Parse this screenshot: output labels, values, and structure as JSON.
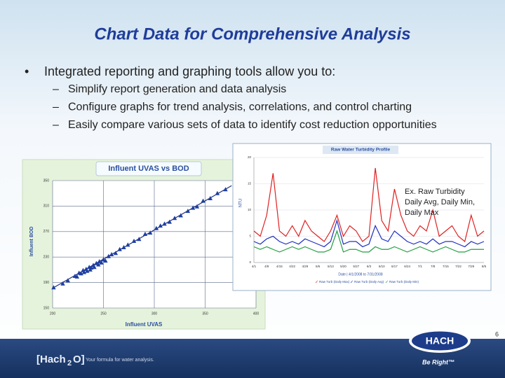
{
  "title": "Chart Data for Comprehensive Analysis",
  "bullets": [
    {
      "text": "Integrated reporting and graphing tools allow you to:",
      "sub": [
        "Simplify report generation and data analysis",
        "Configure graphs for trend analysis, correlations, and control charting",
        "Easily compare various sets of data to identify cost reduction opportunities"
      ]
    }
  ],
  "chart_data": [
    {
      "type": "scatter",
      "title": "Influent UVAS vs BOD",
      "x_label": "Influent UVAS",
      "y_label": "Influent BOD",
      "color": "#1f3fa0",
      "x": [
        201,
        210,
        215,
        222,
        224,
        226,
        228,
        230,
        231,
        233,
        234,
        236,
        237,
        238,
        240,
        241,
        243,
        245,
        246,
        248,
        250,
        252,
        255,
        258,
        262,
        266,
        270,
        274,
        280,
        285,
        291,
        296,
        302,
        306,
        310,
        315,
        320,
        326,
        333,
        338,
        342,
        348,
        355,
        362,
        370
      ],
      "values": [
        182,
        188,
        193,
        200,
        199,
        205,
        204,
        209,
        206,
        211,
        208,
        214,
        210,
        213,
        217,
        214,
        220,
        218,
        223,
        221,
        226,
        224,
        231,
        234,
        236,
        242,
        245,
        249,
        255,
        258,
        266,
        268,
        275,
        279,
        282,
        285,
        291,
        295,
        302,
        307,
        309,
        318,
        322,
        330,
        336
      ],
      "trendline": {
        "x": [
          200,
          376
        ],
        "values": [
          181,
          342
        ]
      },
      "xlim": [
        200,
        400
      ],
      "xticks": [
        200,
        250,
        300,
        350,
        400
      ],
      "ylim": [
        150,
        350
      ],
      "yticks": [
        150,
        190,
        230,
        270,
        310,
        350
      ],
      "grid": true
    },
    {
      "type": "line",
      "title": "Raw Water Turbidity Profile",
      "y_label": "NTU",
      "date_range": "Date | 4/1/2008 to 7/31/2008",
      "categories": [
        "4/1",
        null,
        "4/8",
        null,
        "4/15",
        null,
        "4/22",
        null,
        "4/29",
        null,
        "5/6",
        null,
        "5/13",
        null,
        "5/20",
        null,
        "5/27",
        null,
        "6/3",
        null,
        "6/10",
        null,
        "6/17",
        null,
        "6/24",
        null,
        "7/1",
        null,
        "7/8",
        null,
        "7/15",
        null,
        "7/22",
        null,
        "7/29",
        null,
        "8/5"
      ],
      "series": [
        {
          "name": "Raw Turb (Daily Max)",
          "color": "#e02020",
          "values": [
            6,
            5,
            9,
            17,
            6,
            5,
            7,
            5,
            8,
            6,
            5,
            4,
            6,
            9,
            5,
            7,
            6,
            4,
            5,
            18,
            8,
            6,
            14,
            9,
            6,
            5,
            7,
            6,
            10,
            5,
            6,
            7,
            5,
            4,
            9,
            5,
            6
          ]
        },
        {
          "name": "Raw Turb (Daily Avg)",
          "color": "#2030c0",
          "values": [
            4,
            3.5,
            4.5,
            5,
            4,
            3.5,
            4,
            3.5,
            4.5,
            4,
            3.5,
            3,
            4,
            8,
            3.5,
            4,
            4,
            3,
            3.5,
            7,
            4.5,
            4,
            6,
            5,
            4,
            3.5,
            4,
            3.5,
            4.5,
            3.5,
            4,
            4,
            3.5,
            3,
            4,
            3.5,
            4
          ]
        },
        {
          "name": "Raw Turb (Daily Min)",
          "color": "#20a040",
          "values": [
            3,
            2.5,
            3,
            2.5,
            2,
            2.5,
            3,
            2.5,
            3,
            2.5,
            2,
            2,
            2.5,
            6,
            2,
            2.5,
            2.5,
            2,
            2,
            3,
            2.5,
            2.5,
            3,
            2.5,
            2,
            2.5,
            3,
            2.5,
            2,
            2.5,
            3,
            2.5,
            2,
            2,
            2.5,
            2.5,
            2.5
          ]
        }
      ],
      "ylim": [
        0,
        20
      ],
      "yticks": [
        0,
        5,
        10,
        15,
        20
      ],
      "grid": true
    }
  ],
  "annotation": [
    "Ex. Raw Turbidity",
    "Daily Avg, Daily Min,",
    "Daily Max"
  ],
  "footer": {
    "brand": "[Hach",
    "brand_sub": "2",
    "brand_end": "O]",
    "tagline": "Your formula for water analysis.",
    "logo": "HACH",
    "slogan": "Be Right™"
  },
  "page_number": 6
}
